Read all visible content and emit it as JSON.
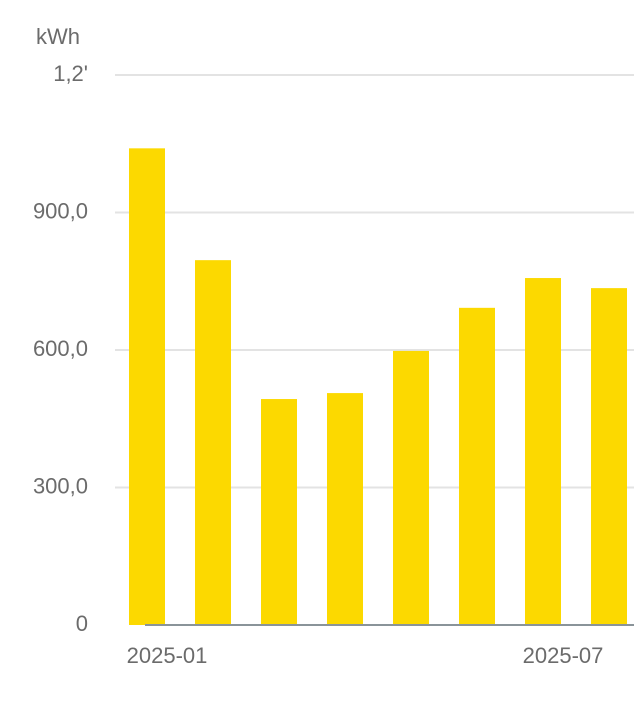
{
  "chart_data": {
    "type": "bar",
    "axis_label": "kWh",
    "categories": [
      "2025-01",
      null,
      null,
      null,
      null,
      null,
      "2025-07",
      null
    ],
    "values": [
      1040,
      796,
      493,
      506,
      598,
      692,
      757,
      735
    ],
    "color": "#fcd900",
    "ylim": [
      0,
      1200
    ],
    "yticks": [
      0,
      {
        "value": 300,
        "label": "300,0"
      },
      {
        "value": 600,
        "label": "600,0"
      },
      {
        "value": 900,
        "label": "900,0"
      },
      {
        "value": 1200,
        "label": "1,2'"
      }
    ],
    "grid": true
  }
}
